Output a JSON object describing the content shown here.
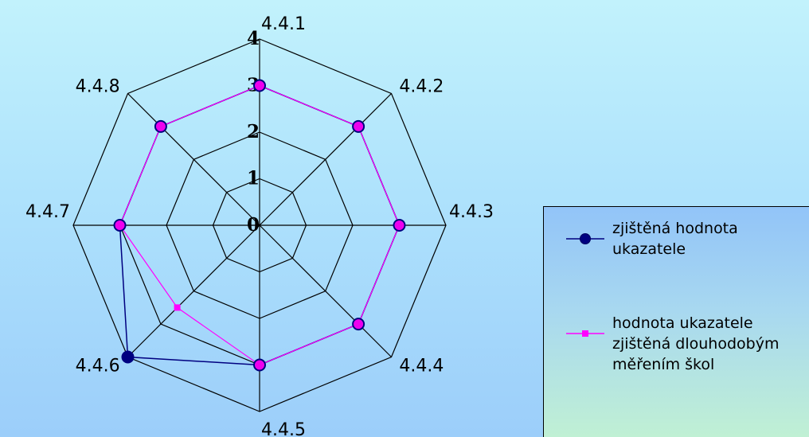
{
  "chart_data": {
    "type": "radar",
    "categories": [
      "4.4.1",
      "4.4.2",
      "4.4.3",
      "4.4.4",
      "4.4.5",
      "4.4.6",
      "4.4.7",
      "4.4.8"
    ],
    "radial_ticks": [
      "0",
      "1",
      "2",
      "3",
      "4"
    ],
    "rlim": [
      0,
      4
    ],
    "series": [
      {
        "name": "zjištěná hodnota ukazatele",
        "color": "#000080",
        "marker": "circle",
        "values": [
          3,
          3,
          3,
          3,
          3,
          4,
          3,
          3
        ]
      },
      {
        "name": "hodnota ukazatele zjištěná dlouhodobým měřením škol",
        "color": "#ff00ff",
        "marker": "square",
        "values": [
          3,
          3,
          3,
          3,
          3,
          2.5,
          3,
          3
        ]
      }
    ],
    "legend_position": "bottom-right"
  },
  "legend": {
    "series1_label": "zjištěná hodnota ukazatele",
    "series2_label": "hodnota ukazatele zjištěná dlouhodobým měřením škol"
  },
  "colors": {
    "series1": "#000080",
    "series2": "#ff00ff",
    "marker_fill": "#ee00ee"
  }
}
